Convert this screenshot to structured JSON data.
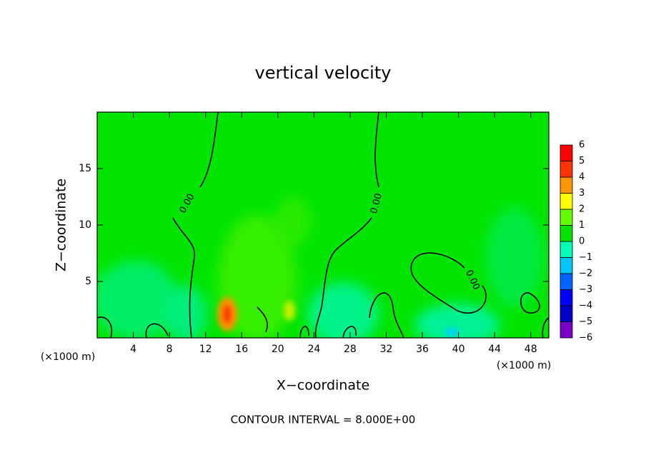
{
  "chart_data": {
    "type": "contour",
    "title": "vertical velocity",
    "x_label": "X−coordinate",
    "y_label": "Z−coordinate",
    "x_unit": "(×1000 m)",
    "annotation": "CONTOUR INTERVAL = 8.000E+00",
    "contour_label": "0.00",
    "xlim": [
      0,
      50
    ],
    "xticks": [
      4,
      8,
      12,
      16,
      20,
      24,
      28,
      32,
      36,
      40,
      44,
      48
    ],
    "ylim": [
      0,
      20
    ],
    "yticks": [
      5,
      10,
      15
    ],
    "colorbar": {
      "levels": [
        {
          "value": -6,
          "label": "−6"
        },
        {
          "value": -5,
          "label": "−5"
        },
        {
          "value": -4,
          "label": "−4"
        },
        {
          "value": -3,
          "label": "−3"
        },
        {
          "value": -2,
          "label": "−2"
        },
        {
          "value": -1,
          "label": "−1"
        },
        0,
        1,
        2,
        3,
        4,
        5,
        6
      ],
      "colors": [
        "#7a00c8",
        "#0000c8",
        "#0000ff",
        "#0064ff",
        "#00c8ff",
        "#00ffb4",
        "#00e400",
        "#64ff00",
        "#ffff00",
        "#ff9600",
        "#ff3200",
        "#ff0000"
      ]
    },
    "field_color": "#00e400"
  }
}
